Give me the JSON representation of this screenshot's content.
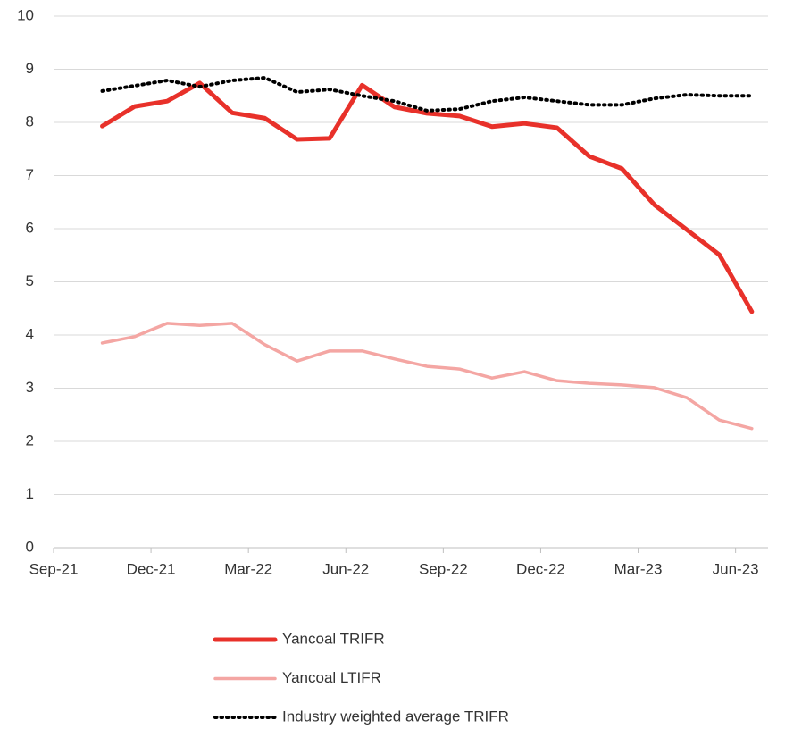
{
  "chart_data": {
    "type": "line",
    "x": [
      "2021-10",
      "2021-11",
      "2021-12",
      "2022-01",
      "2022-02",
      "2022-03",
      "2022-04",
      "2022-05",
      "2022-06",
      "2022-07",
      "2022-08",
      "2022-09",
      "2022-10",
      "2022-11",
      "2022-12",
      "2023-01",
      "2023-02",
      "2023-03",
      "2023-04",
      "2023-05",
      "2023-06"
    ],
    "series": [
      {
        "name": "Yancoal TRIFR",
        "color": "#e8312a",
        "style": "solid",
        "values": [
          7.93,
          8.3,
          8.4,
          8.74,
          8.18,
          8.08,
          7.68,
          7.7,
          8.7,
          8.29,
          8.17,
          8.12,
          7.92,
          7.98,
          7.9,
          7.36,
          7.13,
          6.45,
          5.98,
          5.51,
          4.44
        ]
      },
      {
        "name": "Yancoal LTIFR",
        "color": "#f4a6a3",
        "style": "solid",
        "values": [
          3.85,
          3.97,
          4.22,
          4.18,
          4.22,
          3.82,
          3.51,
          3.7,
          3.7,
          3.55,
          3.41,
          3.36,
          3.19,
          3.31,
          3.14,
          3.09,
          3.06,
          3.01,
          2.82,
          2.4,
          2.24
        ]
      },
      {
        "name": "Industry weighted average TRIFR",
        "color": "#000000",
        "style": "dotted",
        "values": [
          8.59,
          8.69,
          8.79,
          8.67,
          8.79,
          8.84,
          8.57,
          8.62,
          8.5,
          8.4,
          8.22,
          8.25,
          8.4,
          8.47,
          8.4,
          8.33,
          8.33,
          8.45,
          8.52,
          8.5,
          8.5
        ]
      }
    ],
    "xlim": [
      "2021-09",
      "2023-07"
    ],
    "xticks": [
      {
        "value": "2021-09",
        "label": "Sep-21"
      },
      {
        "value": "2021-12",
        "label": "Dec-21"
      },
      {
        "value": "2022-03",
        "label": "Mar-22"
      },
      {
        "value": "2022-06",
        "label": "Jun-22"
      },
      {
        "value": "2022-09",
        "label": "Sep-22"
      },
      {
        "value": "2022-12",
        "label": "Dec-22"
      },
      {
        "value": "2023-03",
        "label": "Mar-23"
      },
      {
        "value": "2023-06",
        "label": "Jun-23"
      }
    ],
    "ylim": [
      0,
      10
    ],
    "yticks": [
      0,
      1,
      2,
      3,
      4,
      5,
      6,
      7,
      8,
      9,
      10
    ],
    "grid": true,
    "legend": "bottom"
  }
}
